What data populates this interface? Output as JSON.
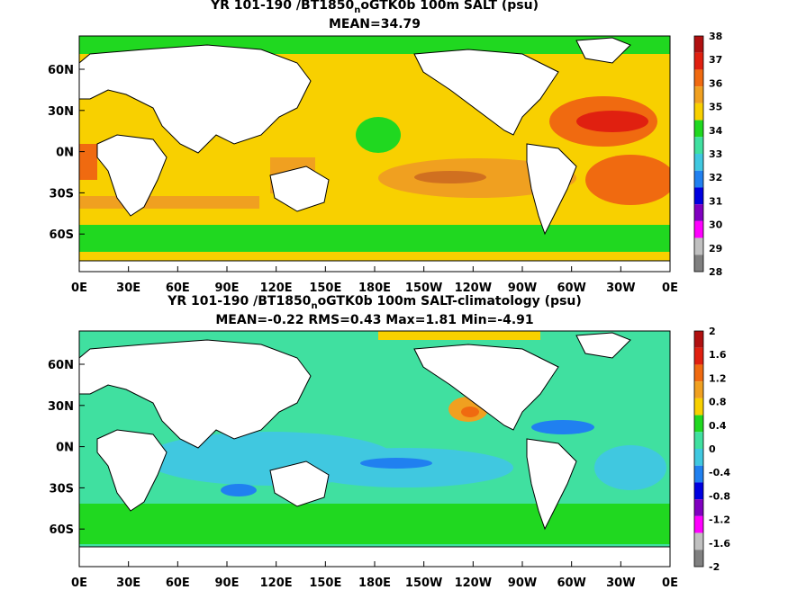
{
  "panels": [
    {
      "title_pre": "YR 101-190 /BT1850",
      "title_sub": "n",
      "title_post": "oGTK0b 100m SALT (psu)",
      "stats": "MEAN=34.79",
      "colorbar": {
        "labels": [
          "38",
          "37",
          "36",
          "35",
          "34",
          "33",
          "32",
          "31",
          "30",
          "29",
          "28"
        ],
        "colors": [
          "#b01010",
          "#e02010",
          "#f06a10",
          "#f0a020",
          "#f8d000",
          "#20d820",
          "#40e0a0",
          "#40c8e0",
          "#2080f0",
          "#0000e0",
          "#8000c0",
          "#ff00ff",
          "#c0c0c0",
          "#808080"
        ]
      }
    },
    {
      "title_pre": "YR 101-190 /BT1850",
      "title_sub": "n",
      "title_post": "oGTK0b 100m SALT-climatology (psu)",
      "stats": "MEAN=-0.22   RMS=0.43   Max=1.81   Min=-4.91",
      "colorbar": {
        "labels": [
          "2",
          "1.6",
          "1.2",
          "0.8",
          "0.4",
          "0",
          "-0.4",
          "-0.8",
          "-1.2",
          "-1.6",
          "-2"
        ],
        "colors": [
          "#b01010",
          "#e02010",
          "#f06a10",
          "#f0a020",
          "#f8d000",
          "#20d820",
          "#40e0a0",
          "#40c8e0",
          "#2080f0",
          "#0000e0",
          "#8000c0",
          "#ff00ff",
          "#c0c0c0",
          "#808080"
        ]
      }
    }
  ],
  "x_ticks": [
    "0E",
    "30E",
    "60E",
    "90E",
    "120E",
    "150E",
    "180E",
    "150W",
    "120W",
    "90W",
    "60W",
    "30W",
    "0E"
  ],
  "y_ticks": [
    "60N",
    "30N",
    "0N",
    "30S",
    "60S"
  ]
}
